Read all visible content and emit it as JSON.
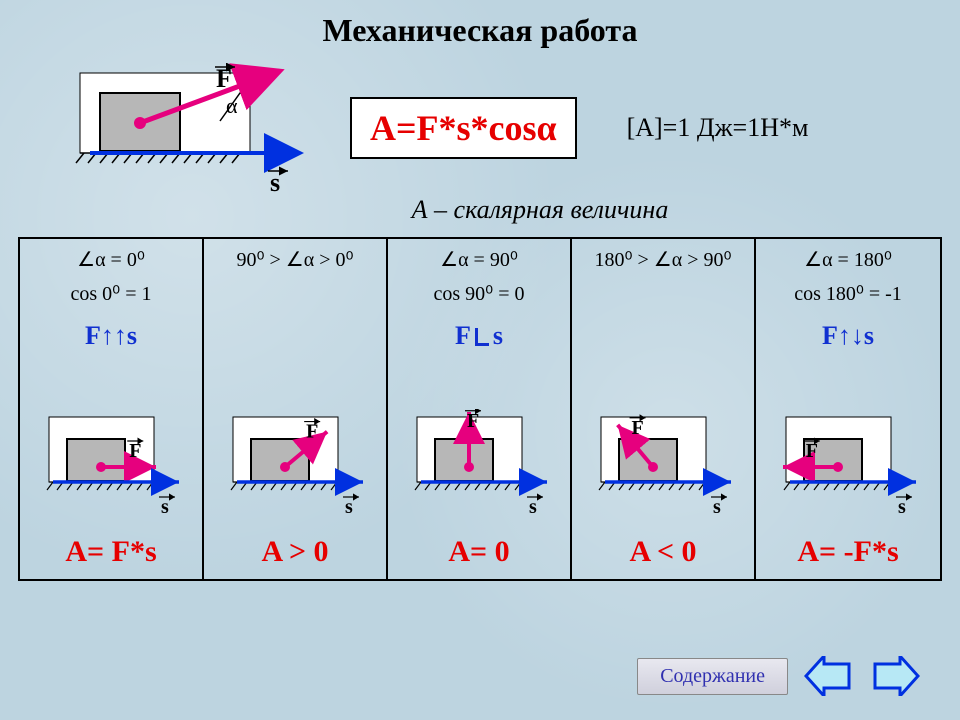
{
  "title": "Механическая  работа",
  "formula": "A=F*s*cosα",
  "unit_text": "[A]=1 Дж=1Н*м",
  "scalar_text": "А – скалярная  величина",
  "main_diagram": {
    "box_fill": "#b7b7b7",
    "box_stroke": "#000",
    "force_color": "#e6007e",
    "s_color": "#0030e0",
    "angle_label": "α",
    "F_label": "F",
    "s_label": "s"
  },
  "colors": {
    "title": "#000000",
    "formula": "#e60000",
    "unit": "#000000",
    "relation": "#1030d0",
    "result": "#e60000",
    "cond": "#000000",
    "force_arrow": "#e6007e",
    "s_arrow": "#0030e0",
    "box_fill": "#b7b7b7",
    "nav_arrow": "#0030e0",
    "nav_fill": "#b7e8f5",
    "btn_text": "#3030b0"
  },
  "cells": [
    {
      "angle": "∠α = 0⁰",
      "cos": "cos 0⁰ = 1",
      "relation": "F↑↑s",
      "force_angle_deg": 0,
      "result": "A= F*s"
    },
    {
      "angle": "90⁰ > ∠α > 0⁰",
      "cos": "",
      "relation": "",
      "force_angle_deg": 40,
      "result": "A > 0"
    },
    {
      "angle": "∠α = 90⁰",
      "cos": "cos 90⁰ = 0",
      "relation": "F⊥s",
      "force_angle_deg": 90,
      "result": "A= 0"
    },
    {
      "angle": "180⁰ > ∠α > 90⁰",
      "cos": "",
      "relation": "",
      "force_angle_deg": 130,
      "result": "A < 0"
    },
    {
      "angle": "∠α = 180⁰",
      "cos": "cos 180⁰ = -1",
      "relation": "F↑↓s",
      "force_angle_deg": 180,
      "result": "A= -F*s"
    }
  ],
  "footer": {
    "content_label": "Содержание"
  }
}
